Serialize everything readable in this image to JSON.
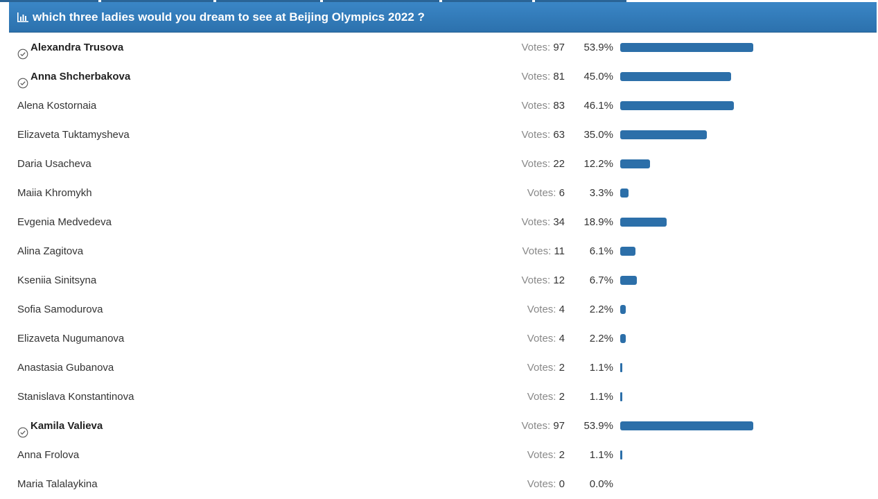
{
  "poll": {
    "title": "which three ladies would you dream to see at Beijing Olympics 2022 ?",
    "votes_label": "Votes:",
    "accent_color": "#2c71ad",
    "bar_color": "#2c6fa9",
    "bar_max_percent": 53.9,
    "options": [
      {
        "name": "Alexandra Trusova",
        "votes": "97",
        "percent": "53.9%",
        "value": 53.9,
        "voted": true
      },
      {
        "name": "Anna Shcherbakova",
        "votes": "81",
        "percent": "45.0%",
        "value": 45.0,
        "voted": true
      },
      {
        "name": "Alena Kostornaia",
        "votes": "83",
        "percent": "46.1%",
        "value": 46.1,
        "voted": false
      },
      {
        "name": "Elizaveta Tuktamysheva",
        "votes": "63",
        "percent": "35.0%",
        "value": 35.0,
        "voted": false
      },
      {
        "name": "Daria Usacheva",
        "votes": "22",
        "percent": "12.2%",
        "value": 12.2,
        "voted": false
      },
      {
        "name": "Maiia Khromykh",
        "votes": "6",
        "percent": "3.3%",
        "value": 3.3,
        "voted": false
      },
      {
        "name": "Evgenia Medvedeva",
        "votes": "34",
        "percent": "18.9%",
        "value": 18.9,
        "voted": false
      },
      {
        "name": "Alina Zagitova",
        "votes": "11",
        "percent": "6.1%",
        "value": 6.1,
        "voted": false
      },
      {
        "name": "Kseniia Sinitsyna",
        "votes": "12",
        "percent": "6.7%",
        "value": 6.7,
        "voted": false
      },
      {
        "name": "Sofia Samodurova",
        "votes": "4",
        "percent": "2.2%",
        "value": 2.2,
        "voted": false
      },
      {
        "name": "Elizaveta Nugumanova",
        "votes": "4",
        "percent": "2.2%",
        "value": 2.2,
        "voted": false
      },
      {
        "name": "Anastasia Gubanova",
        "votes": "2",
        "percent": "1.1%",
        "value": 1.1,
        "voted": false
      },
      {
        "name": "Stanislava Konstantinova",
        "votes": "2",
        "percent": "1.1%",
        "value": 1.1,
        "voted": false
      },
      {
        "name": "Kamila Valieva",
        "votes": "97",
        "percent": "53.9%",
        "value": 53.9,
        "voted": true
      },
      {
        "name": "Anna Frolova",
        "votes": "2",
        "percent": "1.1%",
        "value": 1.1,
        "voted": false
      },
      {
        "name": "Maria Talalaykina",
        "votes": "0",
        "percent": "0.0%",
        "value": 0.0,
        "voted": false
      }
    ]
  }
}
